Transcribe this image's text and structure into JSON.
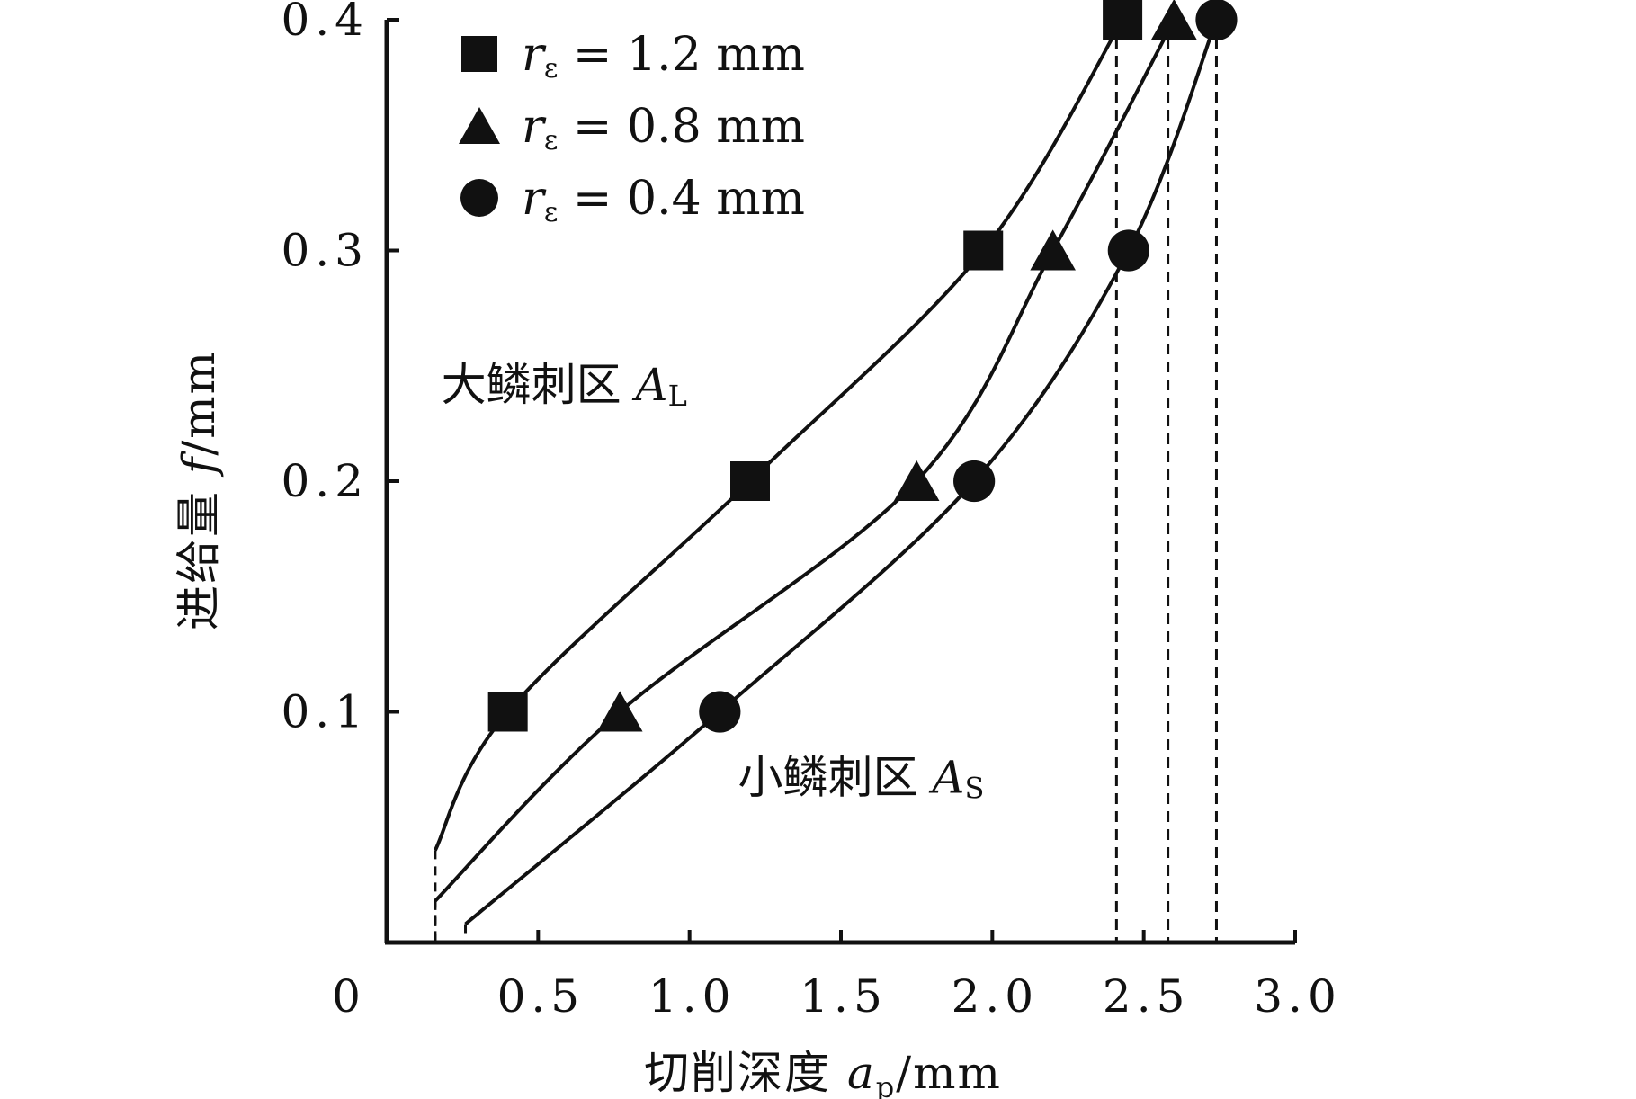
{
  "chart_data": {
    "type": "line",
    "xlabel": {
      "prefix": "切削深度 ",
      "symbol": "a",
      "subscript": "p",
      "unit": "/mm"
    },
    "ylabel": {
      "prefix": "进给量 ",
      "symbol": "f",
      "unit": "/mm"
    },
    "origin_label": "0",
    "xlim": [
      0,
      3.0
    ],
    "ylim": [
      0,
      0.4
    ],
    "x_ticks": [
      0.5,
      1.0,
      1.5,
      2.0,
      2.5,
      3.0
    ],
    "x_tick_labels": [
      "0.5",
      "1.0",
      "1.5",
      "2.0",
      "2.5",
      "3.0"
    ],
    "y_ticks": [
      0.1,
      0.2,
      0.3,
      0.4
    ],
    "y_tick_labels": [
      "0.1",
      "0.2",
      "0.3",
      "0.4"
    ],
    "grid": false,
    "legend_position": "top-left",
    "colors": {
      "line": "#111111",
      "marker": "#111111"
    },
    "series": [
      {
        "name": {
          "symbol": "r",
          "subscript": "ε",
          "text": " = 1.2 mm"
        },
        "marker": "square",
        "points": [
          [
            0.4,
            0.1
          ],
          [
            1.2,
            0.2
          ],
          [
            1.97,
            0.3
          ],
          [
            2.43,
            0.4
          ]
        ],
        "curve": [
          [
            0.16,
            0.04
          ],
          [
            0.4,
            0.1
          ],
          [
            1.2,
            0.2
          ],
          [
            1.97,
            0.3
          ],
          [
            2.43,
            0.4
          ]
        ],
        "vertical_at": 2.41
      },
      {
        "name": {
          "symbol": "r",
          "subscript": "ε",
          "text": " = 0.8 mm"
        },
        "marker": "triangle",
        "points": [
          [
            0.77,
            0.1
          ],
          [
            1.75,
            0.2
          ],
          [
            2.2,
            0.3
          ],
          [
            2.6,
            0.4
          ]
        ],
        "curve": [
          [
            0.16,
            0.018
          ],
          [
            0.77,
            0.1
          ],
          [
            1.75,
            0.2
          ],
          [
            2.2,
            0.3
          ],
          [
            2.6,
            0.4
          ]
        ],
        "vertical_at": 2.58
      },
      {
        "name": {
          "symbol": "r",
          "subscript": "ε",
          "text": " = 0.4 mm"
        },
        "marker": "circle",
        "points": [
          [
            1.1,
            0.1
          ],
          [
            1.94,
            0.2
          ],
          [
            2.45,
            0.3
          ],
          [
            2.74,
            0.4
          ]
        ],
        "curve": [
          [
            0.26,
            0.008
          ],
          [
            1.1,
            0.1
          ],
          [
            1.94,
            0.2
          ],
          [
            2.45,
            0.3
          ],
          [
            2.74,
            0.4
          ]
        ],
        "vertical_at": 2.74
      }
    ],
    "annotations": [
      {
        "text": "大鳞刺区 ",
        "symbol": "A",
        "subscript": "L",
        "x": 0.18,
        "y": 0.235
      },
      {
        "text": "小鳞刺区 ",
        "symbol": "A",
        "subscript": "S",
        "x": 1.16,
        "y": 0.065
      }
    ]
  }
}
